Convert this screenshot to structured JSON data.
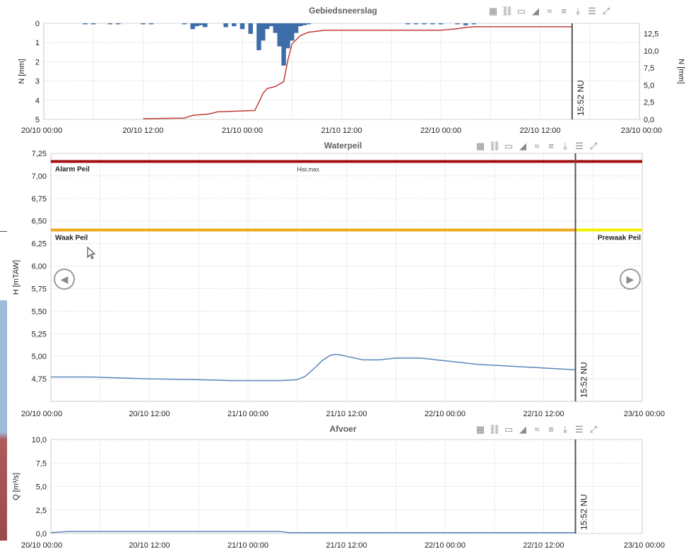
{
  "colors": {
    "rain_bar": "#3d6da8",
    "cumulative_line": "#c23b3b",
    "water_line": "#5b86bb",
    "alarm": "#a30f0f",
    "waak": "#f0a81a",
    "prewaak": "#f2f000",
    "now_line": "#555555",
    "grid": "#dcdcdc"
  },
  "toolbar_icons": [
    "grid-icon",
    "link-icon",
    "comment-icon",
    "area-chart-icon",
    "trend-icon",
    "menu-icon",
    "download-icon",
    "list-icon",
    "expand-icon"
  ],
  "toolbar_glyphs": [
    "▦",
    "⛓",
    "▭",
    "◢",
    "≈",
    "≡",
    "⤓",
    "☰",
    "⤢"
  ],
  "nav": {
    "prev_glyph": "◀",
    "next_glyph": "▶"
  },
  "x_ticks": [
    "20/10 00:00",
    "20/10 12:00",
    "21/10 00:00",
    "21/10 12:00",
    "22/10 00:00",
    "22/10 12:00",
    "23/10 00:00"
  ],
  "now_label": "15:52 NU",
  "chart_data": [
    {
      "type": "bar",
      "title": "Gebiedsneerslag",
      "ylabel": "N [mm]",
      "y2label": "N [mm]",
      "ylim": [
        5,
        0
      ],
      "y2lim": [
        0,
        14
      ],
      "yticks": [
        "0",
        "1",
        "2",
        "3",
        "4",
        "5"
      ],
      "y2ticks": [
        "0,0",
        "2,5",
        "5,0",
        "7,5",
        "10,0",
        "12,5"
      ],
      "xlim": [
        0,
        72
      ],
      "now_x": 63.87,
      "series": [
        {
          "kind": "bar",
          "x": [
            5,
            6,
            8,
            9,
            12,
            13,
            17,
            18,
            18.5,
            19,
            19.5,
            22,
            23,
            24,
            25,
            26,
            26.5,
            27,
            27.5,
            28,
            28.5,
            29,
            29.5,
            30,
            30.5,
            31,
            31.5,
            32,
            44,
            45,
            46,
            47,
            48,
            50,
            51,
            52
          ],
          "values": [
            0.05,
            0.05,
            0.05,
            0.05,
            0.05,
            0.05,
            0.05,
            0.3,
            0.15,
            0.1,
            0.2,
            0.2,
            0.15,
            0.3,
            0.55,
            1.4,
            0.9,
            0.3,
            0.15,
            0.5,
            1.2,
            2.2,
            1.3,
            0.9,
            0.5,
            0.15,
            0.1,
            0.05,
            0.05,
            0.05,
            0.05,
            0.05,
            0.05,
            0.05,
            0.1,
            0.05
          ]
        },
        {
          "kind": "line",
          "axis": "right",
          "x": [
            12,
            17,
            18,
            20,
            21,
            25.5,
            26,
            26.5,
            27,
            28,
            29,
            29.5,
            30,
            31,
            32,
            34,
            40,
            48,
            50,
            51,
            52,
            63.87
          ],
          "values": [
            0.1,
            0.2,
            0.6,
            0.8,
            1.1,
            1.3,
            2.5,
            3.8,
            4.5,
            4.8,
            5.5,
            8.6,
            11.0,
            12.2,
            12.7,
            13.0,
            13.0,
            13.0,
            13.2,
            13.4,
            13.5,
            13.5
          ]
        }
      ]
    },
    {
      "type": "line",
      "title": "Waterpeil",
      "ylabel": "H [mTAW]",
      "ylim": [
        4.5,
        7.25
      ],
      "yticks": [
        "4,75",
        "5,00",
        "5,25",
        "5,50",
        "5,75",
        "6,00",
        "6,25",
        "6,50",
        "6,75",
        "7,00",
        "7,25"
      ],
      "xlim": [
        0,
        72
      ],
      "now_x": 63.87,
      "thresholds": [
        {
          "name": "Alarm Peil",
          "value": 7.16,
          "color": "#a30f0f",
          "label_side": "left"
        },
        {
          "name": "Waak Peil",
          "value": 6.4,
          "color": "#f0a81a",
          "label_side": "left"
        },
        {
          "name": "Prewaak Peil",
          "value": 6.4,
          "color": "#f2f000",
          "label_side": "right"
        }
      ],
      "annotation": "Hist.max.",
      "series": [
        {
          "x": [
            0,
            5,
            8,
            12,
            18,
            22,
            24,
            26,
            28,
            30,
            31,
            32,
            33,
            34,
            34.5,
            35,
            36,
            37,
            38,
            40,
            42,
            44,
            45,
            46,
            48,
            50,
            52,
            54,
            56,
            58,
            60,
            62,
            63.87
          ],
          "values": [
            4.77,
            4.77,
            4.76,
            4.75,
            4.74,
            4.73,
            4.73,
            4.73,
            4.73,
            4.74,
            4.78,
            4.86,
            4.95,
            5.01,
            5.02,
            5.02,
            5.0,
            4.98,
            4.96,
            4.96,
            4.98,
            4.98,
            4.98,
            4.97,
            4.95,
            4.93,
            4.91,
            4.9,
            4.89,
            4.88,
            4.87,
            4.86,
            4.85
          ]
        }
      ]
    },
    {
      "type": "line",
      "title": "Afvoer",
      "ylabel": "Q [m³/s]",
      "ylim": [
        0,
        10
      ],
      "yticks": [
        "0,0",
        "2,5",
        "5,0",
        "7,5",
        "10,0"
      ],
      "xlim": [
        0,
        72
      ],
      "now_x": 63.87,
      "series": [
        {
          "x": [
            0,
            2,
            5,
            12,
            20,
            28,
            29,
            30,
            40,
            50,
            60,
            63.87
          ],
          "values": [
            0.1,
            0.2,
            0.2,
            0.2,
            0.2,
            0.2,
            0.1,
            0.1,
            0.1,
            0.1,
            0.1,
            0.1
          ]
        }
      ]
    }
  ]
}
